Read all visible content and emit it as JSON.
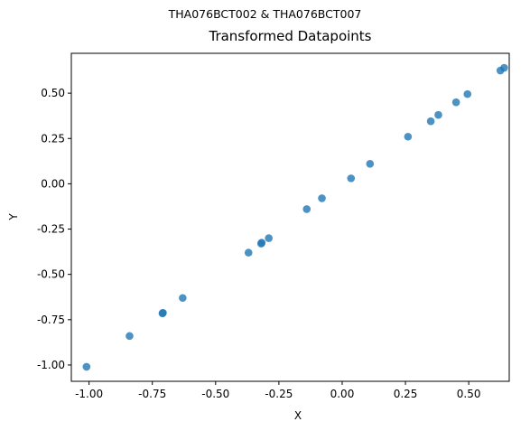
{
  "chart_data": {
    "type": "scatter",
    "suptitle": "THA076BCT002 & THA076BCT007",
    "title": "Transformed Datapoints",
    "xlabel": "X",
    "ylabel": "Y",
    "xlim": [
      -1.07,
      0.66
    ],
    "ylim": [
      -1.09,
      0.72
    ],
    "xticks": [
      "-1.00",
      "-0.75",
      "-0.50",
      "-0.25",
      "0.00",
      "0.25",
      "0.50"
    ],
    "yticks": [
      "-1.00",
      "-0.75",
      "-0.50",
      "-0.25",
      "0.00",
      "0.25",
      "0.50"
    ],
    "grid": false,
    "color": "#1f77b4",
    "points": [
      {
        "x": -1.01,
        "y": -1.01
      },
      {
        "x": -0.84,
        "y": -0.84
      },
      {
        "x": -0.71,
        "y": -0.715
      },
      {
        "x": -0.708,
        "y": -0.712
      },
      {
        "x": -0.63,
        "y": -0.63
      },
      {
        "x": -0.37,
        "y": -0.38
      },
      {
        "x": -0.32,
        "y": -0.33
      },
      {
        "x": -0.318,
        "y": -0.325
      },
      {
        "x": -0.29,
        "y": -0.3
      },
      {
        "x": -0.14,
        "y": -0.14
      },
      {
        "x": -0.08,
        "y": -0.08
      },
      {
        "x": 0.035,
        "y": 0.03
      },
      {
        "x": 0.11,
        "y": 0.11
      },
      {
        "x": 0.26,
        "y": 0.26
      },
      {
        "x": 0.35,
        "y": 0.345
      },
      {
        "x": 0.38,
        "y": 0.38
      },
      {
        "x": 0.45,
        "y": 0.45
      },
      {
        "x": 0.495,
        "y": 0.495
      },
      {
        "x": 0.625,
        "y": 0.625
      },
      {
        "x": 0.64,
        "y": 0.64
      }
    ]
  }
}
